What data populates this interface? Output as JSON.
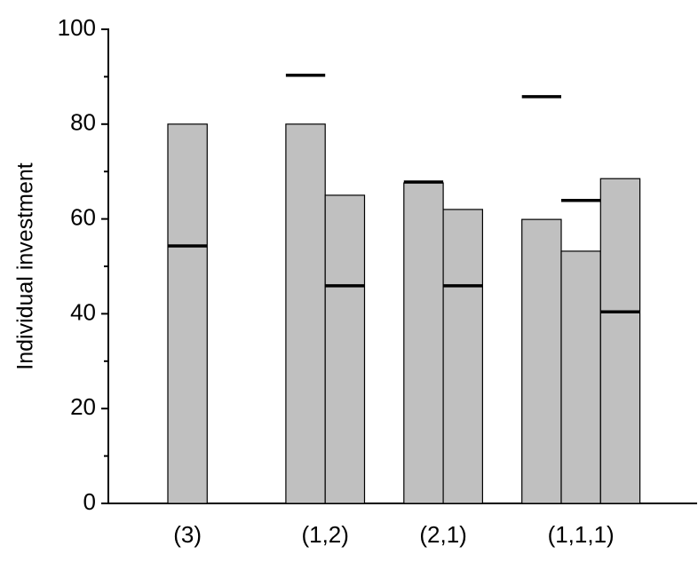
{
  "chart_data": {
    "type": "bar",
    "y_label": "Individual investment",
    "groups": [
      {
        "label": "(3)",
        "values": [
          80
        ],
        "markers": [
          54.3
        ]
      },
      {
        "label": "(1,2)",
        "values": [
          80,
          65
        ],
        "markers": [
          90.3,
          45.9
        ]
      },
      {
        "label": "(2,1)",
        "values": [
          67.6,
          62
        ],
        "markers": [
          67.8,
          45.9
        ]
      },
      {
        "label": "(1,1,1)",
        "values": [
          59.9,
          53.2,
          68.5
        ],
        "markers": [
          85.8,
          63.9,
          40.4
        ]
      }
    ],
    "color": "#c0c0c0",
    "marker_color": "#000000",
    "ylim": [
      0,
      100
    ],
    "yticks": [
      0,
      20,
      40,
      60,
      80,
      100
    ],
    "yminorticks": [
      10,
      30,
      50,
      70,
      90
    ],
    "grid": false
  }
}
